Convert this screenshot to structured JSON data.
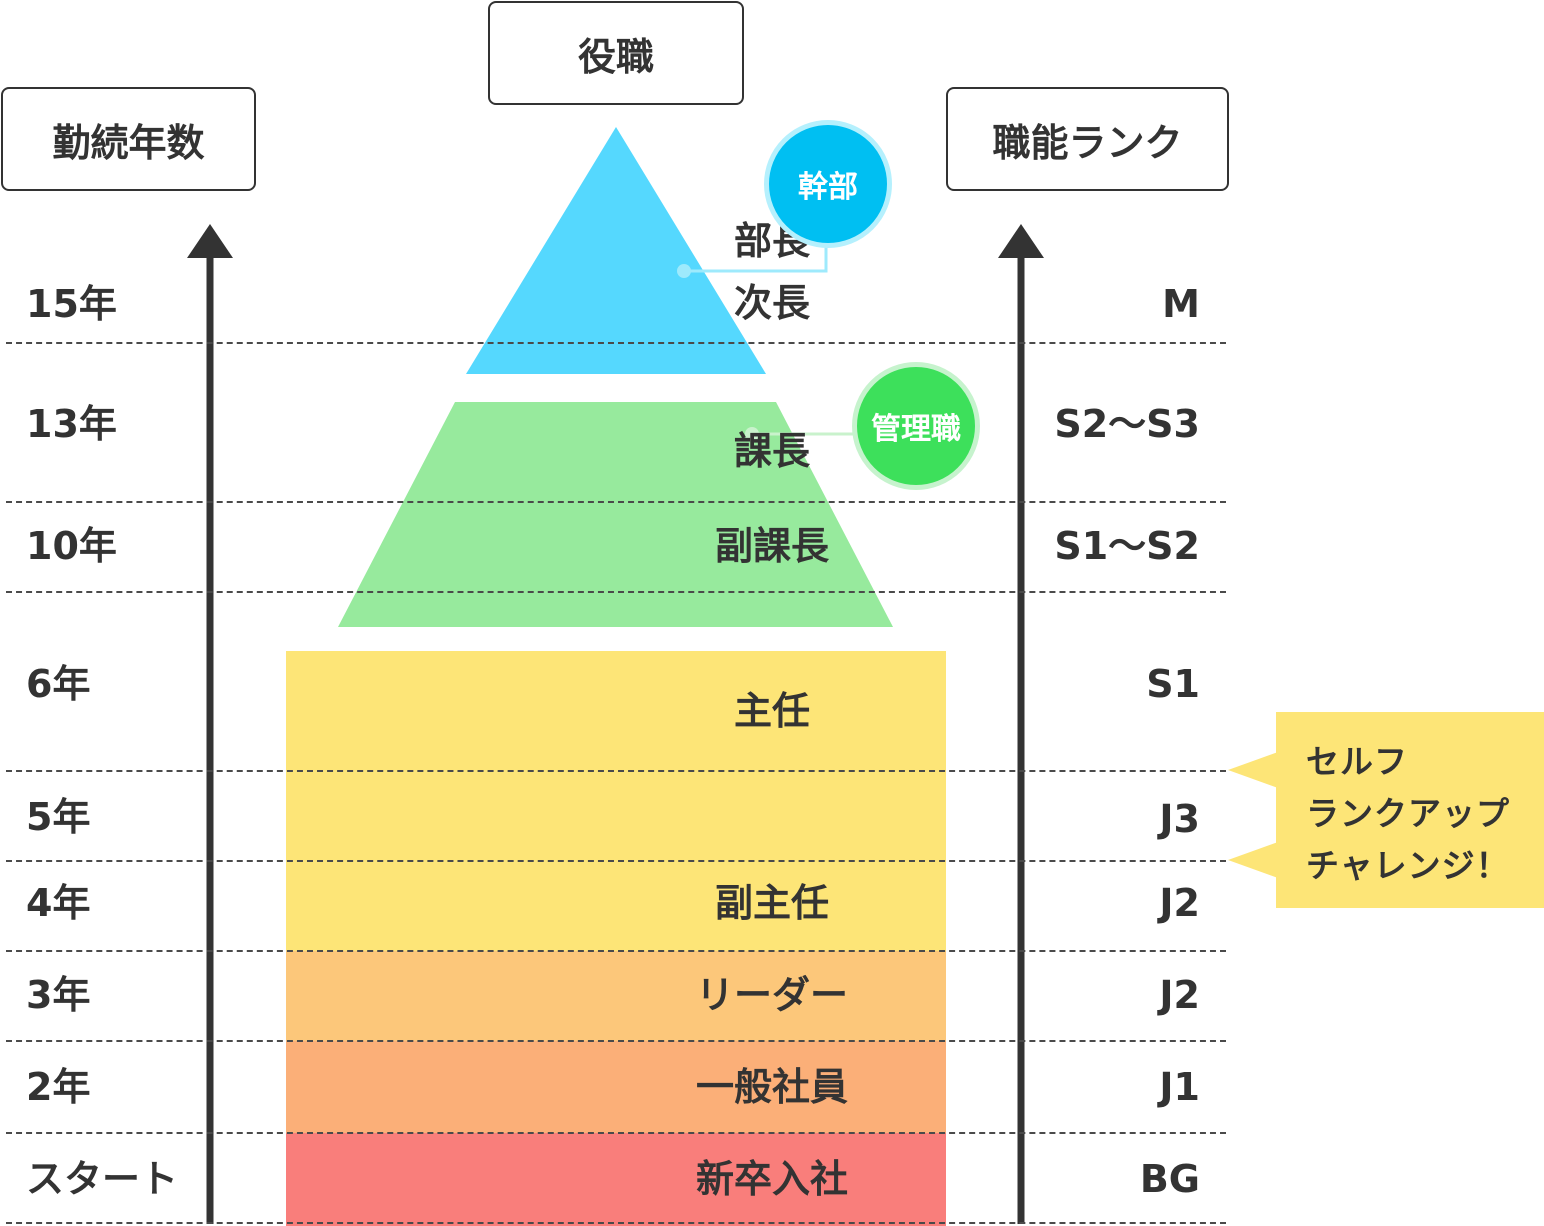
{
  "headers": {
    "tenure": "勤続年数",
    "position": "役職",
    "skill_rank": "職能ランク"
  },
  "tenure_levels": [
    "15年",
    "13年",
    "10年",
    "6年",
    "5年",
    "4年",
    "3年",
    "2年",
    "スタート"
  ],
  "rank_levels": [
    "M",
    "S2〜S3",
    "S1〜S2",
    "S1",
    "J3",
    "J2",
    "J2",
    "J1",
    "BG"
  ],
  "positions": {
    "bucho": "部長",
    "jicho": "次長",
    "kacho": "課長",
    "fukukacho": "副課長",
    "shunin": "主任",
    "fukushunin": "副主任",
    "leader": "リーダー",
    "ippan": "一般社員",
    "shinsotsu": "新卒入社"
  },
  "groups": {
    "executive": "幹部",
    "management": "管理職"
  },
  "callout": {
    "line1": "セルフ",
    "line2": "ランクアップ",
    "line3": "チャレンジ！"
  },
  "colors": {
    "executive": "#55d8fe",
    "executive_badge": "#00bff2",
    "management": "#97ea9d",
    "management_badge": "#3de05b",
    "staff_yellow": "#fde577",
    "leader": "#fcc77a",
    "general": "#fbaf78",
    "new_hire": "#f97e7b",
    "callout": "#fde577",
    "line": "#333333"
  }
}
